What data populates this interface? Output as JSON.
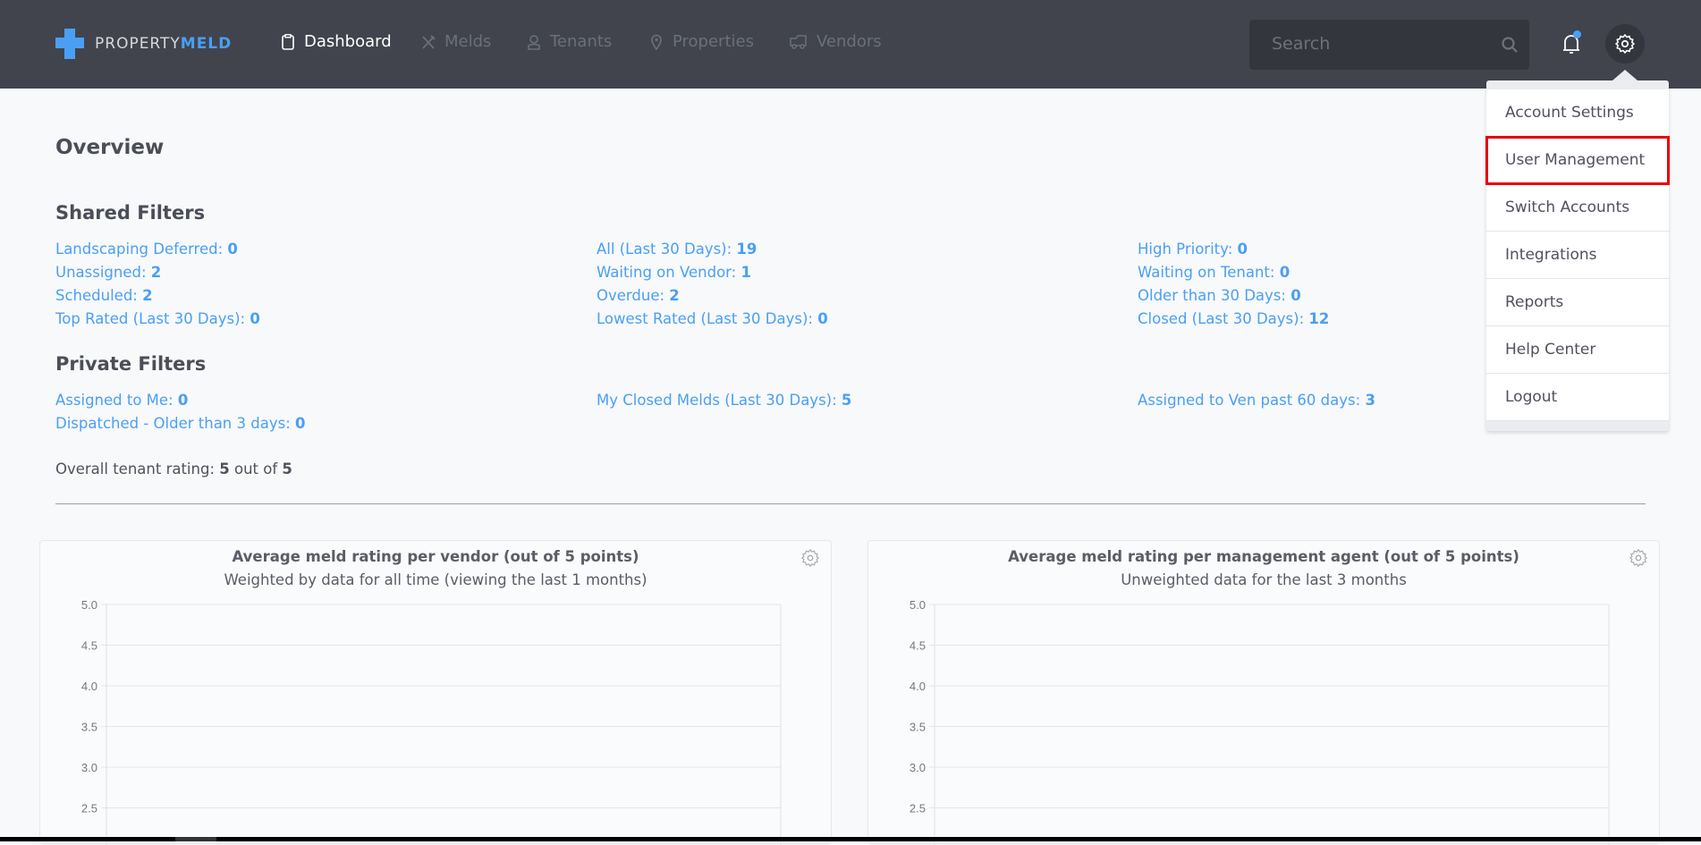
{
  "brand": {
    "name_a": "PROPERTY",
    "name_b": "MELD"
  },
  "nav": {
    "items": [
      {
        "label": "Dashboard",
        "icon": "clipboard-icon",
        "active": true
      },
      {
        "label": "Melds",
        "icon": "tools-icon"
      },
      {
        "label": "Tenants",
        "icon": "person-icon"
      },
      {
        "label": "Properties",
        "icon": "map-pin-icon"
      },
      {
        "label": "Vendors",
        "icon": "truck-icon"
      }
    ],
    "search_placeholder": "Search"
  },
  "settings_menu": {
    "items": [
      "Account Settings",
      "User Management",
      "Switch Accounts",
      "Integrations",
      "Reports",
      "Help Center",
      "Logout"
    ],
    "highlighted": "User Management"
  },
  "page_title": "Overview",
  "shared": {
    "title": "Shared Filters",
    "columns": [
      [
        {
          "label": "Landscaping Deferred:",
          "value": "0"
        },
        {
          "label": "Unassigned:",
          "value": "2"
        },
        {
          "label": "Scheduled:",
          "value": "2"
        },
        {
          "label": "Top Rated (Last 30 Days):",
          "value": "0"
        }
      ],
      [
        {
          "label": "All (Last 30 Days):",
          "value": "19"
        },
        {
          "label": "Waiting on Vendor:",
          "value": "1"
        },
        {
          "label": "Overdue:",
          "value": "2"
        },
        {
          "label": "Lowest Rated (Last 30 Days):",
          "value": "0"
        }
      ],
      [
        {
          "label": "High Priority:",
          "value": "0"
        },
        {
          "label": "Waiting on Tenant:",
          "value": "0"
        },
        {
          "label": "Older than 30 Days:",
          "value": "0"
        },
        {
          "label": "Closed (Last 30 Days):",
          "value": "12"
        }
      ]
    ]
  },
  "private": {
    "title": "Private Filters",
    "columns": [
      [
        {
          "label": "Assigned to Me:",
          "value": "0"
        },
        {
          "label": "Dispatched - Older than 3 days:",
          "value": "0"
        }
      ],
      [
        {
          "label": "My Closed Melds (Last 30 Days):",
          "value": "5"
        }
      ],
      [
        {
          "label": "Assigned to Ven past 60 days:",
          "value": "3"
        }
      ]
    ]
  },
  "rating": {
    "prefix": "Overall tenant rating:",
    "value": "5",
    "mid": "out of",
    "max": "5"
  },
  "colors": {
    "nav": "#41444c",
    "link": "#4a9ff5",
    "highlight": "#e8000b"
  },
  "chart_data": [
    {
      "type": "bar",
      "title": "Average meld rating per vendor (out of 5 points)",
      "subtitle": "Weighted by data for all time (viewing the last 1 months)",
      "yticks": [
        "5.0",
        "4.5",
        "4.0",
        "3.5",
        "3.0",
        "2.5"
      ],
      "ylim_visible": [
        2.5,
        5.0
      ],
      "grid": true,
      "series": []
    },
    {
      "type": "bar",
      "title": "Average meld rating per management agent (out of 5 points)",
      "subtitle": "Unweighted data for the last 3 months",
      "yticks": [
        "5.0",
        "4.5",
        "4.0",
        "3.5",
        "3.0",
        "2.5"
      ],
      "ylim_visible": [
        2.5,
        5.0
      ],
      "grid": true,
      "series": []
    }
  ]
}
